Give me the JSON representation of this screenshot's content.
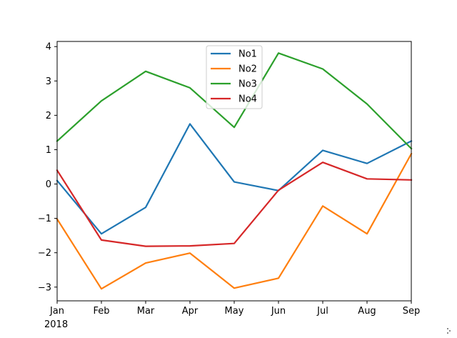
{
  "chart_data": {
    "type": "line",
    "title": "",
    "xlabel": "",
    "ylabel": "",
    "categories": [
      "Jan",
      "Feb",
      "Mar",
      "Apr",
      "May",
      "Jun",
      "Jul",
      "Aug",
      "Sep"
    ],
    "year_label": "2018",
    "ylim": [
      -3.4,
      4.15
    ],
    "yticks": [
      4,
      3,
      2,
      1,
      0,
      -1,
      -2,
      -3
    ],
    "ytick_labels": [
      "4",
      "3",
      "2",
      "1",
      "0",
      "−1",
      "−2",
      "−3"
    ],
    "grid": false,
    "legend_position": "upper-center",
    "series": [
      {
        "name": "No1",
        "color": "#1f77b4",
        "values": [
          0.1,
          -1.45,
          -0.68,
          1.75,
          0.06,
          -0.19,
          0.98,
          0.6,
          1.25
        ]
      },
      {
        "name": "No2",
        "color": "#ff7f0e",
        "values": [
          -1.02,
          -3.05,
          -2.3,
          -2.01,
          -3.03,
          -2.74,
          -0.64,
          -1.45,
          0.88
        ]
      },
      {
        "name": "No3",
        "color": "#2ca02c",
        "values": [
          1.25,
          2.42,
          3.28,
          2.8,
          1.65,
          3.81,
          3.35,
          2.33,
          1.03
        ]
      },
      {
        "name": "No4",
        "color": "#d62728",
        "values": [
          0.4,
          -1.63,
          -1.81,
          -1.8,
          -1.73,
          -0.18,
          0.63,
          0.15,
          0.12
        ]
      }
    ]
  }
}
